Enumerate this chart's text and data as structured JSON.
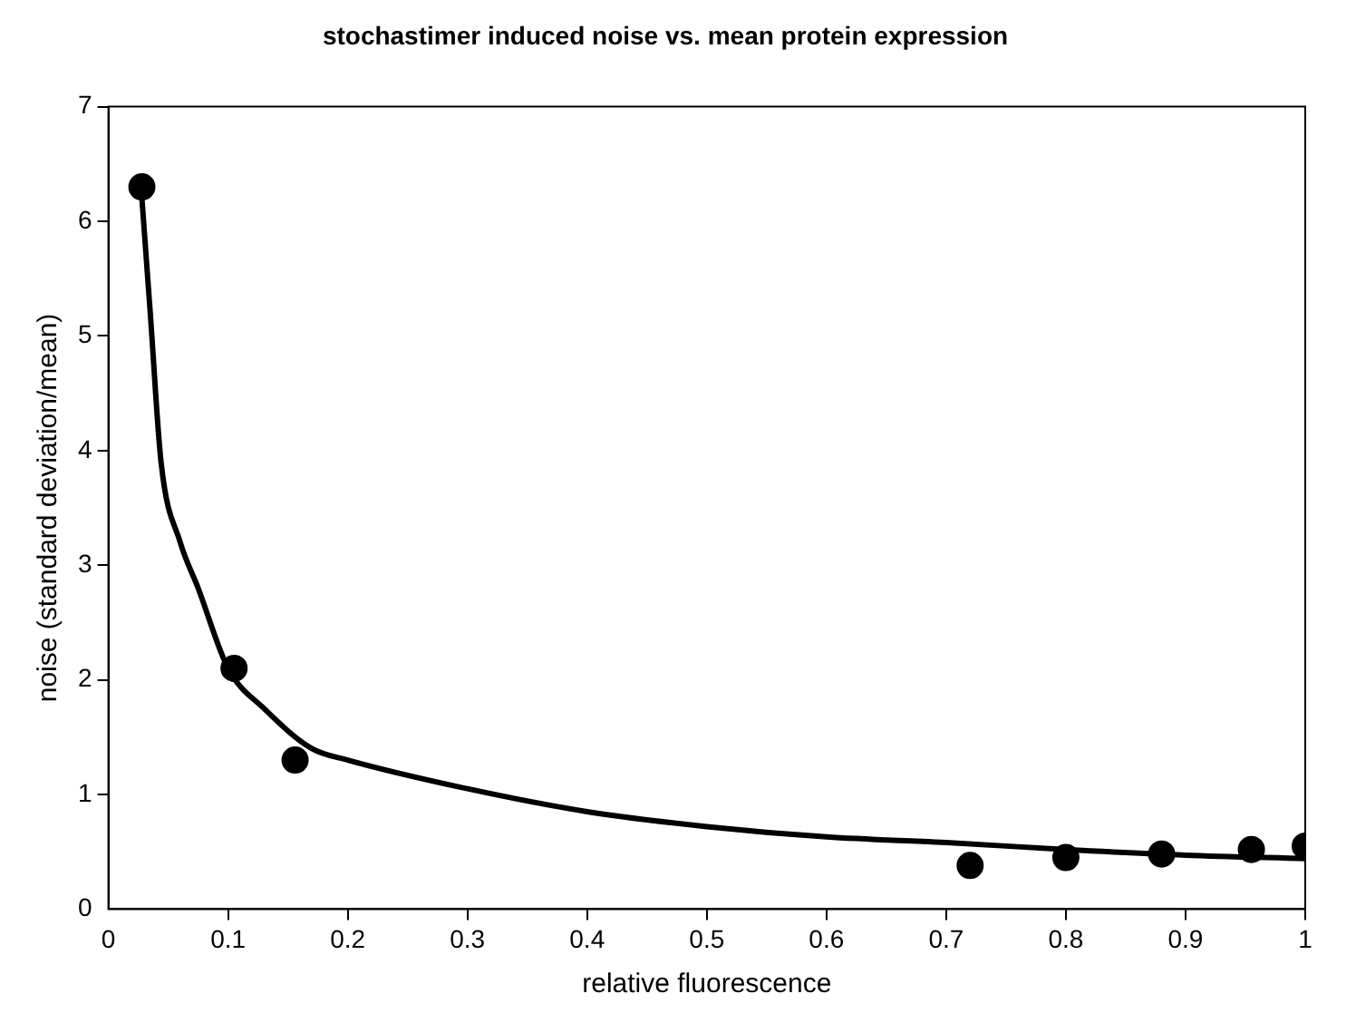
{
  "chart_data": {
    "type": "scatter",
    "title": "stochastimer induced noise vs. mean protein expression",
    "xlabel": "relative fluorescence",
    "ylabel": "noise (standard deviation/mean)",
    "xlim": [
      0,
      1
    ],
    "ylim": [
      0,
      7
    ],
    "xticks": [
      0,
      0.1,
      0.2,
      0.3,
      0.4,
      0.5,
      0.6,
      0.7,
      0.8,
      0.9,
      1
    ],
    "yticks": [
      0,
      1,
      2,
      3,
      4,
      5,
      6,
      7
    ],
    "grid": false,
    "legend": false,
    "series": [
      {
        "type": "scatter",
        "color": "#000000",
        "marker": "circle",
        "x": [
          0.028,
          0.105,
          0.156,
          0.72,
          0.8,
          0.88,
          0.955,
          1.0
        ],
        "values": [
          6.3,
          2.1,
          1.3,
          0.38,
          0.45,
          0.48,
          0.52,
          0.55
        ]
      },
      {
        "type": "line",
        "color": "#000000",
        "marker": "none",
        "x": [
          0.028,
          0.035,
          0.044,
          0.06,
          0.075,
          0.1,
          0.13,
          0.17,
          0.2,
          0.3,
          0.4,
          0.5,
          0.6,
          0.7,
          0.8,
          0.9,
          1.0
        ],
        "values": [
          6.2,
          5.2,
          3.9,
          3.2,
          2.8,
          2.1,
          1.75,
          1.4,
          1.3,
          1.05,
          0.85,
          0.72,
          0.63,
          0.58,
          0.52,
          0.47,
          0.44
        ]
      }
    ]
  }
}
